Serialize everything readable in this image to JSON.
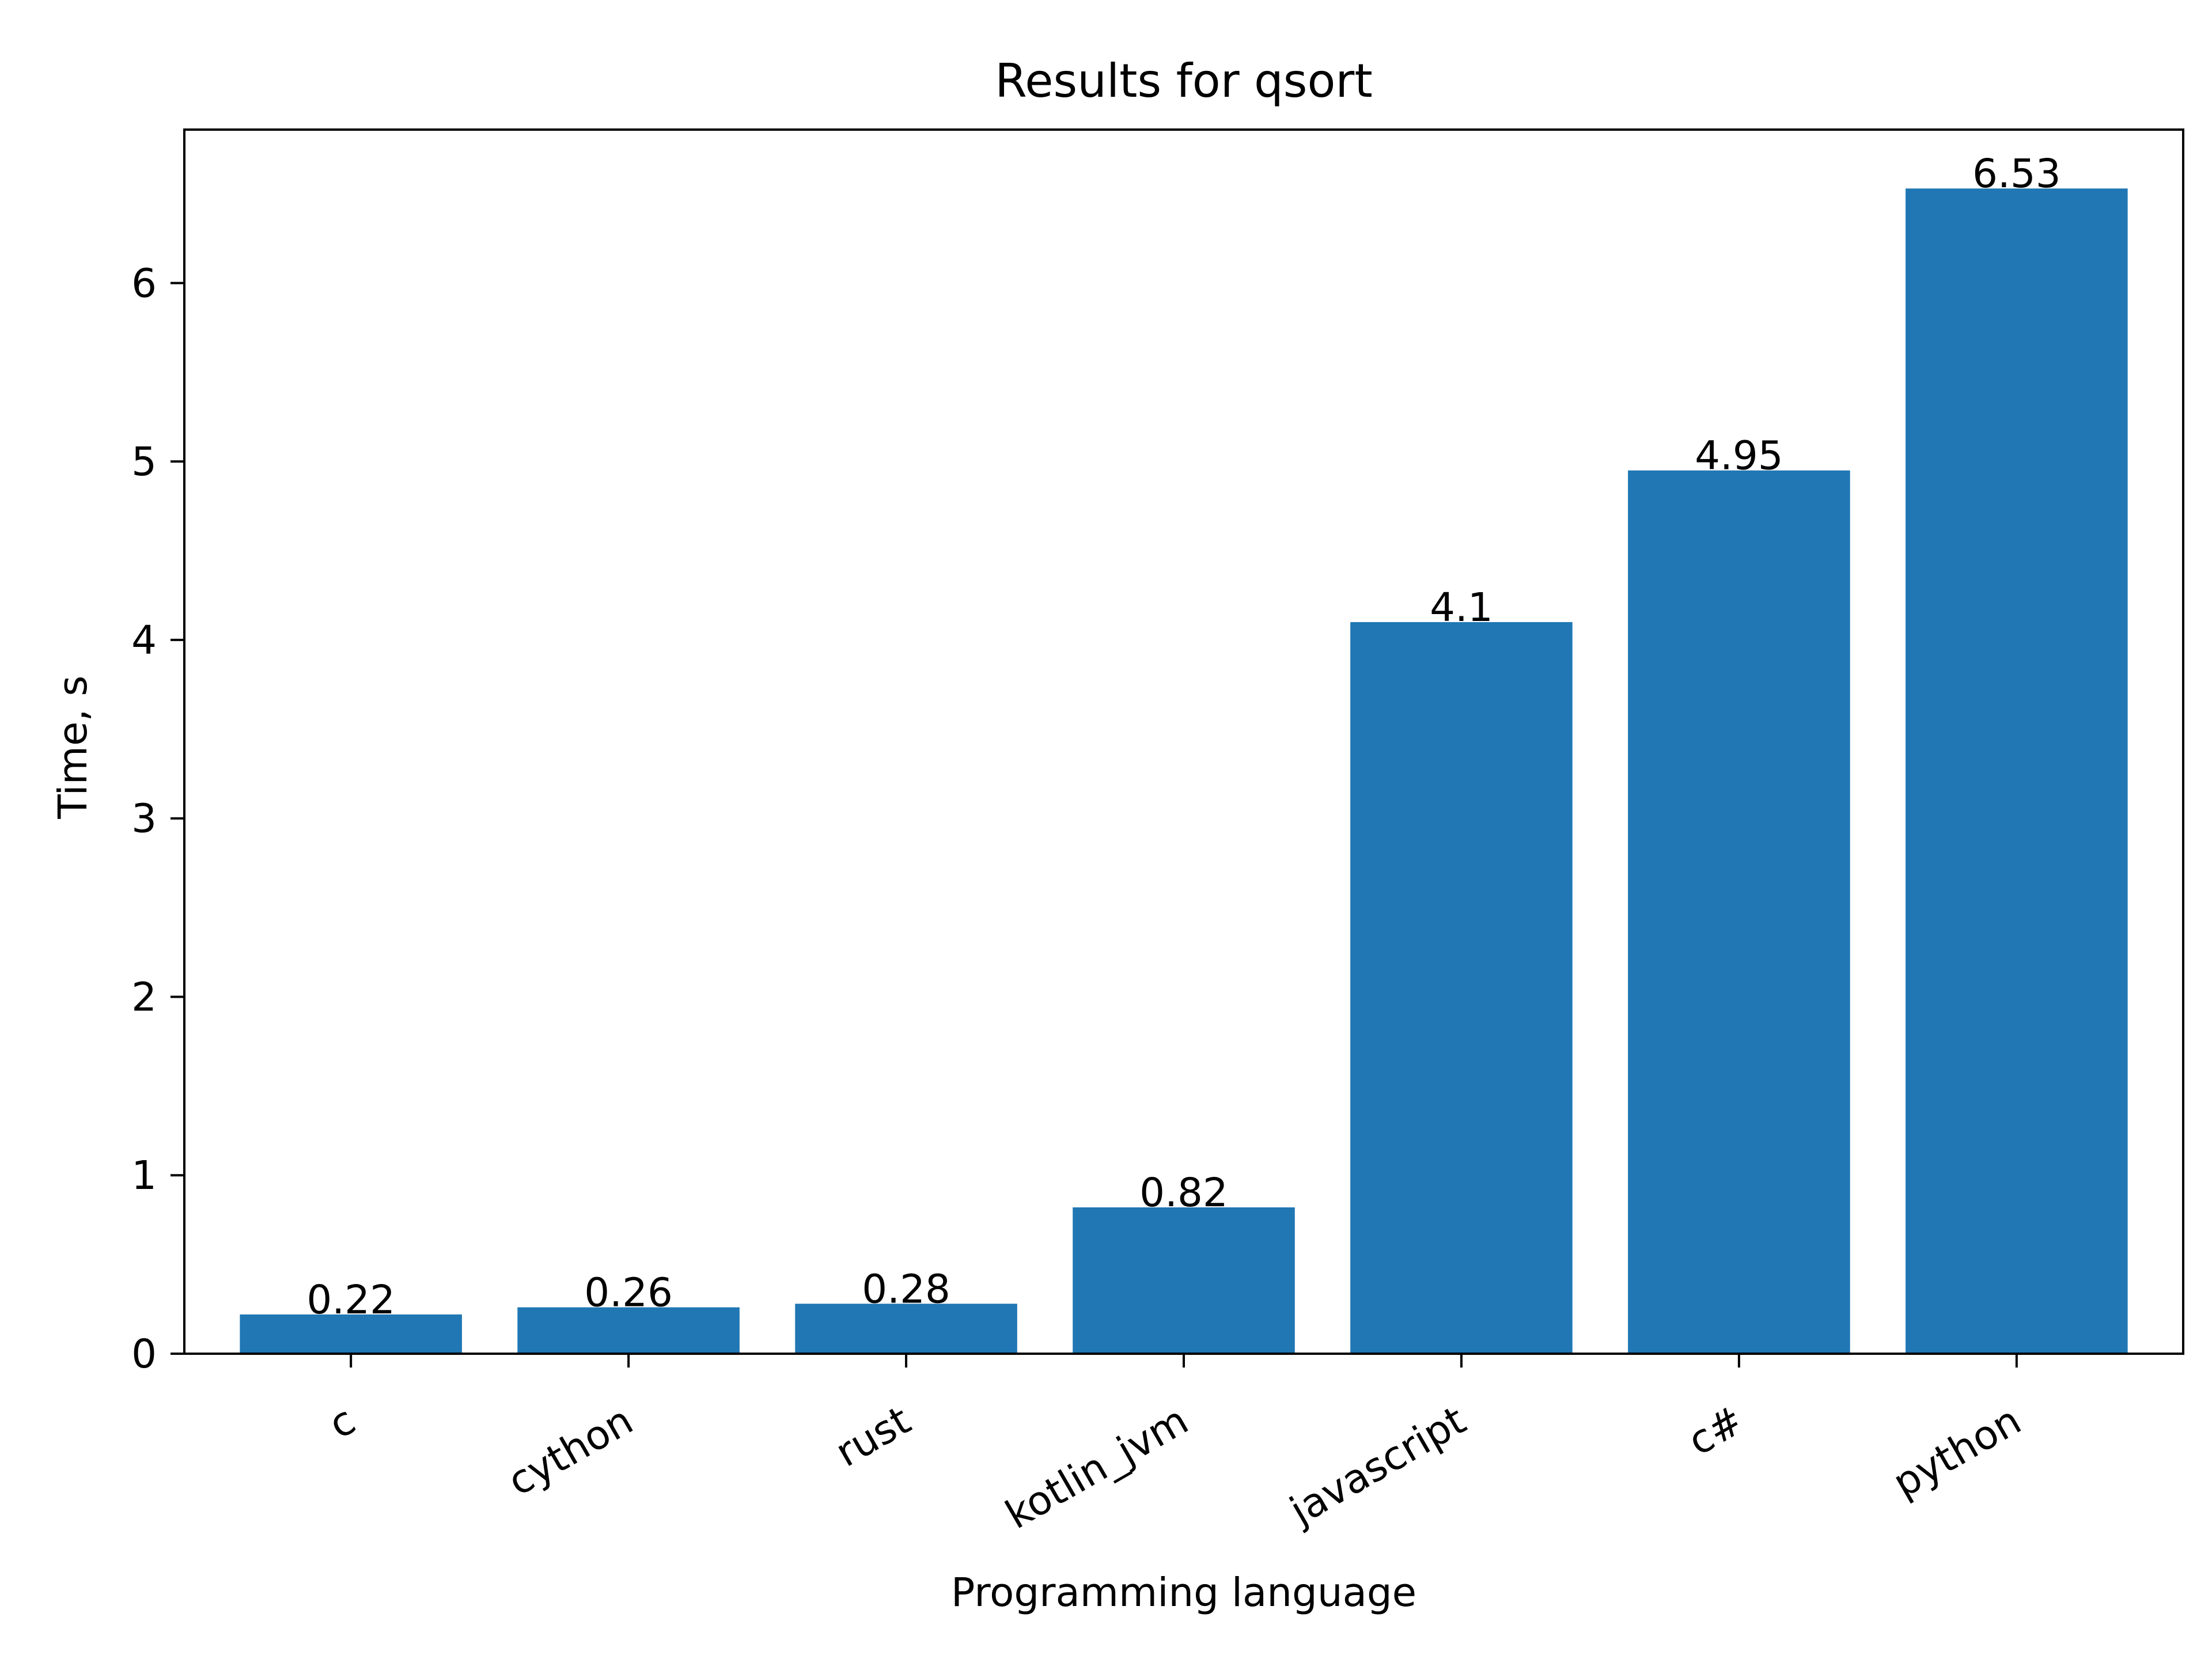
{
  "chart_data": {
    "type": "bar",
    "title": "Results for qsort",
    "xlabel": "Programming language",
    "ylabel": "Time, s",
    "categories": [
      "c",
      "cython",
      "rust",
      "kotlin_jvm",
      "javascript",
      "c#",
      "python"
    ],
    "values": [
      0.22,
      0.26,
      0.28,
      0.82,
      4.1,
      4.95,
      6.53
    ],
    "data_labels": [
      "0.22",
      "0.26",
      "0.28",
      "0.82",
      "4.1",
      "4.95",
      "6.53"
    ],
    "yticks": [
      0,
      1,
      2,
      3,
      4,
      5,
      6
    ],
    "ytick_labels": [
      "0",
      "1",
      "2",
      "3",
      "4",
      "5",
      "6"
    ],
    "ylim": [
      0,
      6.86
    ],
    "bar_color": "#2077b4",
    "grid": false,
    "legend": "none"
  }
}
